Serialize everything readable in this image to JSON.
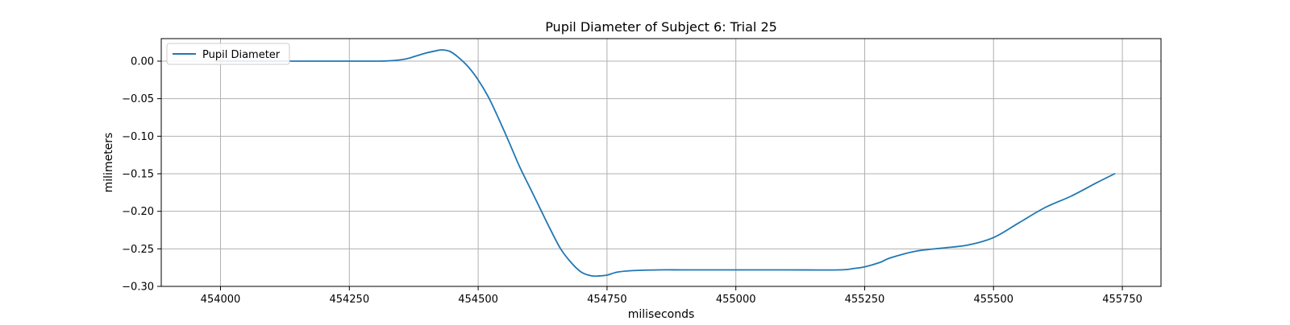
{
  "chart_data": {
    "type": "line",
    "title": "Pupil Diameter of Subject 6: Trial 25",
    "xlabel": "miliseconds",
    "ylabel": "milimeters",
    "xlim": [
      453885,
      455825
    ],
    "ylim": [
      -0.3,
      0.03
    ],
    "xticks": [
      454000,
      454250,
      454500,
      454750,
      455000,
      455250,
      455500,
      455750
    ],
    "xtick_labels": [
      "454000",
      "454250",
      "454500",
      "454750",
      "455000",
      "455250",
      "455500",
      "455750"
    ],
    "yticks": [
      0.0,
      -0.05,
      -0.1,
      -0.15,
      -0.2,
      -0.25,
      -0.3
    ],
    "ytick_labels": [
      "0.00",
      "−0.05",
      "−0.10",
      "−0.15",
      "−0.20",
      "−0.25",
      "−0.30"
    ],
    "grid": true,
    "legend_position": "top-left",
    "colors": {
      "series": "#1f77b4",
      "grid": "#b0b0b0",
      "axes": "#000000"
    },
    "series": [
      {
        "name": "Pupil Diameter",
        "x": [
          453990,
          454100,
          454200,
          454300,
          454330,
          454360,
          454380,
          454400,
          454420,
          454430,
          454445,
          454460,
          454480,
          454500,
          454520,
          454540,
          454560,
          454580,
          454600,
          454620,
          454640,
          454660,
          454680,
          454700,
          454720,
          454735,
          454750,
          454770,
          454800,
          454850,
          454900,
          455000,
          455100,
          455200,
          455230,
          455250,
          455280,
          455300,
          455350,
          455400,
          455450,
          455500,
          455550,
          455600,
          455650,
          455700,
          455735
        ],
        "y": [
          0.0,
          0.0,
          0.0,
          0.0,
          0.0005,
          0.003,
          0.007,
          0.011,
          0.014,
          0.015,
          0.013,
          0.006,
          -0.007,
          -0.025,
          -0.048,
          -0.077,
          -0.108,
          -0.14,
          -0.168,
          -0.196,
          -0.224,
          -0.25,
          -0.268,
          -0.281,
          -0.286,
          -0.286,
          -0.285,
          -0.281,
          -0.279,
          -0.278,
          -0.278,
          -0.278,
          -0.278,
          -0.278,
          -0.276,
          -0.274,
          -0.268,
          -0.262,
          -0.253,
          -0.249,
          -0.245,
          -0.235,
          -0.215,
          -0.195,
          -0.18,
          -0.162,
          -0.15
        ]
      }
    ]
  }
}
